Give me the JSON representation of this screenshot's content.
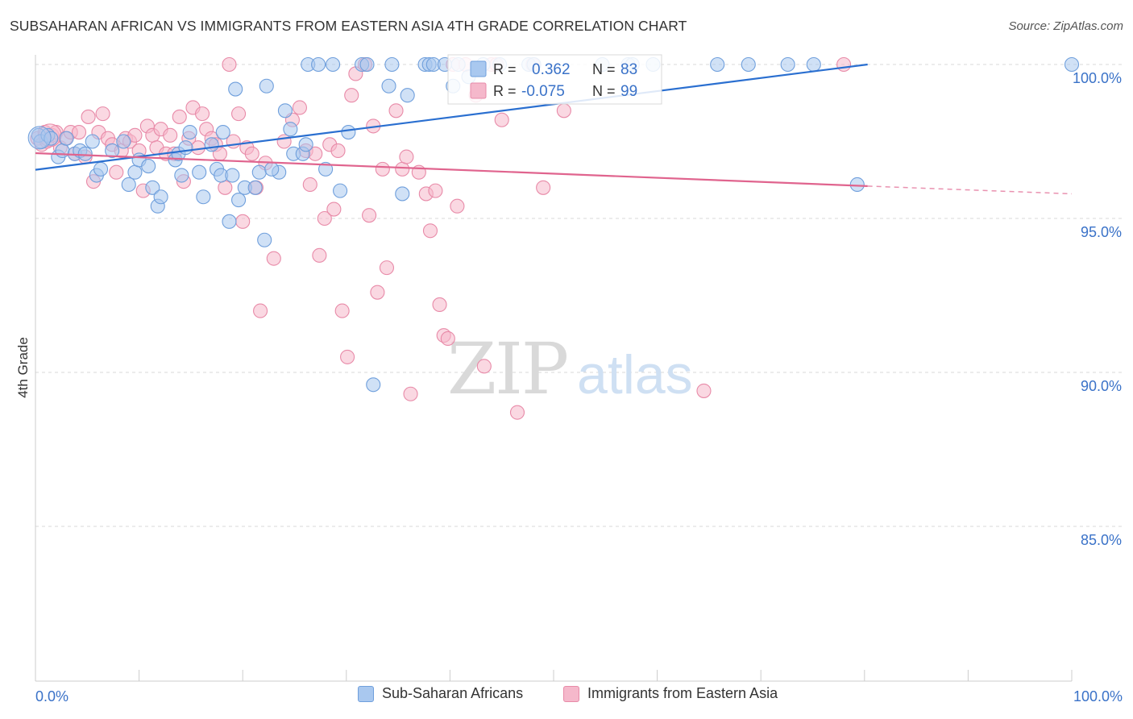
{
  "title": "SUBSAHARAN AFRICAN VS IMMIGRANTS FROM EASTERN ASIA 4TH GRADE CORRELATION CHART",
  "source": "Source: ZipAtlas.com",
  "watermark": {
    "zip": "ZIP",
    "atlas": "atlas"
  },
  "colors": {
    "blue_fill": "#a9c8ef",
    "blue_stroke": "#6f9fdc",
    "blue_line": "#2a6fd0",
    "pink_fill": "#f5b8cb",
    "pink_stroke": "#e88aa8",
    "pink_line": "#e0648e",
    "axis_label": "#3a72c8",
    "grid": "#d8d8d8"
  },
  "stats_legend": [
    {
      "r_label": "R =",
      "r_value": "0.362",
      "n_label": "N =",
      "n_value": "83",
      "color": "blue"
    },
    {
      "r_label": "R =",
      "r_value": "-0.075",
      "n_label": "N =",
      "n_value": "99",
      "color": "pink"
    }
  ],
  "legend": [
    {
      "label": "Sub-Saharan Africans",
      "color": "blue"
    },
    {
      "label": "Immigrants from Eastern Asia",
      "color": "pink"
    }
  ],
  "chart_data": {
    "type": "scatter",
    "title": "SUBSAHARAN AFRICAN VS IMMIGRANTS FROM EASTERN ASIA 4TH GRADE CORRELATION CHART",
    "xlabel": "",
    "ylabel": "4th Grade",
    "xlim": [
      0,
      100
    ],
    "ylim": [
      80.5,
      100.5
    ],
    "x_tick_labels": [
      "0.0%",
      "100.0%"
    ],
    "y_ticks": [
      100,
      95,
      90,
      85
    ],
    "y_tick_labels": [
      "100.0%",
      "95.0%",
      "90.0%",
      "85.0%"
    ],
    "grid": true,
    "legend_position": "bottom",
    "series": [
      {
        "name": "Sub-Saharan Africans",
        "color": "blue",
        "trend": {
          "x": [
            0,
            80.3
          ],
          "y": [
            96.58,
            100.0
          ]
        },
        "points": [
          [
            0.3,
            97.7
          ],
          [
            0.5,
            97.5
          ],
          [
            1.2,
            97.7
          ],
          [
            1.5,
            97.6
          ],
          [
            2.2,
            97.0
          ],
          [
            2.6,
            97.2
          ],
          [
            3.0,
            97.6
          ],
          [
            3.8,
            97.1
          ],
          [
            4.3,
            97.2
          ],
          [
            4.8,
            97.1
          ],
          [
            5.5,
            97.5
          ],
          [
            5.9,
            96.4
          ],
          [
            6.3,
            96.6
          ],
          [
            7.4,
            97.2
          ],
          [
            8.5,
            97.5
          ],
          [
            9.0,
            96.1
          ],
          [
            9.6,
            96.5
          ],
          [
            10.0,
            96.9
          ],
          [
            10.9,
            96.7
          ],
          [
            11.3,
            96.0
          ],
          [
            11.8,
            95.4
          ],
          [
            12.1,
            95.7
          ],
          [
            13.5,
            96.9
          ],
          [
            13.8,
            97.1
          ],
          [
            14.1,
            96.4
          ],
          [
            14.5,
            97.3
          ],
          [
            14.9,
            97.8
          ],
          [
            15.8,
            96.5
          ],
          [
            16.2,
            95.7
          ],
          [
            17.0,
            97.4
          ],
          [
            17.5,
            96.6
          ],
          [
            17.9,
            96.4
          ],
          [
            18.1,
            97.8
          ],
          [
            18.7,
            94.9
          ],
          [
            19.0,
            96.4
          ],
          [
            19.3,
            99.2
          ],
          [
            19.6,
            95.6
          ],
          [
            20.2,
            96.0
          ],
          [
            21.2,
            96.0
          ],
          [
            21.6,
            96.5
          ],
          [
            22.1,
            94.3
          ],
          [
            22.3,
            99.3
          ],
          [
            23.5,
            96.5
          ],
          [
            24.1,
            98.5
          ],
          [
            24.6,
            97.9
          ],
          [
            24.9,
            97.1
          ],
          [
            25.8,
            97.1
          ],
          [
            22.8,
            96.6
          ],
          [
            26.1,
            97.4
          ],
          [
            26.3,
            100.0
          ],
          [
            27.3,
            100.0
          ],
          [
            28.0,
            96.6
          ],
          [
            28.7,
            100.0
          ],
          [
            29.4,
            95.9
          ],
          [
            30.2,
            97.8
          ],
          [
            31.5,
            100.0
          ],
          [
            32.0,
            100.0
          ],
          [
            32.6,
            89.6
          ],
          [
            34.1,
            99.3
          ],
          [
            34.4,
            100.0
          ],
          [
            35.4,
            95.8
          ],
          [
            35.9,
            99.0
          ],
          [
            37.6,
            100.0
          ],
          [
            38.0,
            100.0
          ],
          [
            38.4,
            100.0
          ],
          [
            39.5,
            100.0
          ],
          [
            40.3,
            99.3
          ],
          [
            40.8,
            100.0
          ],
          [
            41.8,
            99.6
          ],
          [
            43.2,
            100.0
          ],
          [
            44.8,
            100.0
          ],
          [
            47.6,
            100.0
          ],
          [
            48.1,
            100.0
          ],
          [
            54.7,
            100.0
          ],
          [
            57.2,
            100.0
          ],
          [
            57.6,
            100.0
          ],
          [
            59.6,
            100.0
          ],
          [
            65.8,
            100.0
          ],
          [
            68.8,
            100.0
          ],
          [
            72.6,
            100.0
          ],
          [
            75.1,
            100.0
          ],
          [
            79.3,
            96.1
          ],
          [
            100.0,
            100.0
          ]
        ]
      },
      {
        "name": "Immigrants from Eastern Asia",
        "color": "pink",
        "trend": {
          "x": [
            0,
            80.3
          ],
          "y": [
            97.12,
            96.05
          ]
        },
        "trend_extension": {
          "x": [
            80.3,
            100
          ],
          "y": [
            96.05,
            95.8
          ]
        },
        "points": [
          [
            0.2,
            97.6
          ],
          [
            0.6,
            97.4
          ],
          [
            0.9,
            97.8
          ],
          [
            1.1,
            97.5
          ],
          [
            1.6,
            97.7
          ],
          [
            2.0,
            97.8
          ],
          [
            2.4,
            97.3
          ],
          [
            2.9,
            97.6
          ],
          [
            3.4,
            97.8
          ],
          [
            3.8,
            97.1
          ],
          [
            4.2,
            97.8
          ],
          [
            4.8,
            97.0
          ],
          [
            5.1,
            98.3
          ],
          [
            5.6,
            96.2
          ],
          [
            6.1,
            97.8
          ],
          [
            6.5,
            98.4
          ],
          [
            7.0,
            97.6
          ],
          [
            7.4,
            97.4
          ],
          [
            7.8,
            96.5
          ],
          [
            8.3,
            97.2
          ],
          [
            8.7,
            97.6
          ],
          [
            9.1,
            97.5
          ],
          [
            9.6,
            97.7
          ],
          [
            10.0,
            97.2
          ],
          [
            10.4,
            95.9
          ],
          [
            10.8,
            98.0
          ],
          [
            11.3,
            97.7
          ],
          [
            11.7,
            97.3
          ],
          [
            12.1,
            97.9
          ],
          [
            12.6,
            97.1
          ],
          [
            13.0,
            97.7
          ],
          [
            13.4,
            97.1
          ],
          [
            13.9,
            98.3
          ],
          [
            14.3,
            96.2
          ],
          [
            14.8,
            97.6
          ],
          [
            15.2,
            98.6
          ],
          [
            15.7,
            97.3
          ],
          [
            16.1,
            98.4
          ],
          [
            16.5,
            97.9
          ],
          [
            17.0,
            97.6
          ],
          [
            17.4,
            97.4
          ],
          [
            17.8,
            97.1
          ],
          [
            18.3,
            96.0
          ],
          [
            18.7,
            100.0
          ],
          [
            19.1,
            97.5
          ],
          [
            19.6,
            98.4
          ],
          [
            20.0,
            94.9
          ],
          [
            20.4,
            97.3
          ],
          [
            20.9,
            97.1
          ],
          [
            21.3,
            96.0
          ],
          [
            21.7,
            92.0
          ],
          [
            22.2,
            96.8
          ],
          [
            23.0,
            93.7
          ],
          [
            24.0,
            97.5
          ],
          [
            24.8,
            98.2
          ],
          [
            25.5,
            98.6
          ],
          [
            26.1,
            97.2
          ],
          [
            26.5,
            96.1
          ],
          [
            27.0,
            97.1
          ],
          [
            27.4,
            93.8
          ],
          [
            27.9,
            95.0
          ],
          [
            28.4,
            97.4
          ],
          [
            28.8,
            95.3
          ],
          [
            29.2,
            97.2
          ],
          [
            29.6,
            92.0
          ],
          [
            30.1,
            90.5
          ],
          [
            30.5,
            99.0
          ],
          [
            30.9,
            99.7
          ],
          [
            31.8,
            100.0
          ],
          [
            32.2,
            95.1
          ],
          [
            32.6,
            98.0
          ],
          [
            33.0,
            92.6
          ],
          [
            33.5,
            96.6
          ],
          [
            33.9,
            93.4
          ],
          [
            34.8,
            98.5
          ],
          [
            35.4,
            96.6
          ],
          [
            35.8,
            97.0
          ],
          [
            36.2,
            89.3
          ],
          [
            37.0,
            96.5
          ],
          [
            37.7,
            95.8
          ],
          [
            38.1,
            94.6
          ],
          [
            38.6,
            95.9
          ],
          [
            39.0,
            92.2
          ],
          [
            39.4,
            91.2
          ],
          [
            39.8,
            91.1
          ],
          [
            40.3,
            100.0
          ],
          [
            40.7,
            95.4
          ],
          [
            41.5,
            100.0
          ],
          [
            42.5,
            99.0
          ],
          [
            43.3,
            90.2
          ],
          [
            44.0,
            100.0
          ],
          [
            44.5,
            100.0
          ],
          [
            45.0,
            98.2
          ],
          [
            46.5,
            88.7
          ],
          [
            48.0,
            100.0
          ],
          [
            49.0,
            96.0
          ],
          [
            51.0,
            98.5
          ],
          [
            64.5,
            89.4
          ],
          [
            78.0,
            100.0
          ]
        ]
      }
    ]
  }
}
